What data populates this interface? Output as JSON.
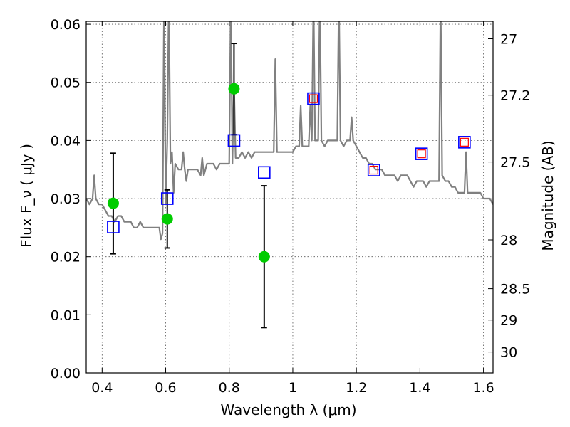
{
  "chart_data": {
    "type": "scatter",
    "xlabel": "Wavelength  λ (μm)",
    "ylabel": "Flux  F_ν  ( μJy )",
    "ylabel_right": "Magnitude (AB)",
    "xlim": [
      0.35,
      1.63
    ],
    "ylim": [
      0.0,
      0.0605
    ],
    "grid": true,
    "x_ticks": [
      0.4,
      0.6,
      0.8,
      1.0,
      1.2,
      1.4,
      1.6
    ],
    "x_tick_labels": [
      "0.4",
      "0.6",
      "0.8",
      "1",
      "1.2",
      "1.4",
      "1.6"
    ],
    "y_ticks": [
      0.0,
      0.01,
      0.02,
      0.03,
      0.04,
      0.05,
      0.06
    ],
    "y_tick_labels": [
      "0.00",
      "0.01",
      "0.02",
      "0.03",
      "0.04",
      "0.05",
      "0.06"
    ],
    "right_ticks": [
      {
        "label": "27",
        "flux": 0.0575
      },
      {
        "label": "27.2",
        "flux": 0.0478
      },
      {
        "label": "27.5",
        "flux": 0.0363
      },
      {
        "label": "28",
        "flux": 0.0229
      },
      {
        "label": "28.5",
        "flux": 0.0145
      },
      {
        "label": "29",
        "flux": 0.0091
      },
      {
        "label": "30",
        "flux": 0.0036
      }
    ],
    "series": [
      {
        "kind": "line",
        "color": "#808080",
        "x": [
          0.35,
          0.36,
          0.37,
          0.375,
          0.38,
          0.39,
          0.4,
          0.41,
          0.42,
          0.43,
          0.44,
          0.45,
          0.46,
          0.47,
          0.48,
          0.49,
          0.5,
          0.51,
          0.52,
          0.53,
          0.54,
          0.55,
          0.56,
          0.57,
          0.58,
          0.585,
          0.59,
          0.595,
          0.6,
          0.605,
          0.61,
          0.615,
          0.62,
          0.625,
          0.63,
          0.64,
          0.65,
          0.655,
          0.66,
          0.665,
          0.67,
          0.68,
          0.69,
          0.7,
          0.71,
          0.715,
          0.72,
          0.725,
          0.73,
          0.74,
          0.75,
          0.76,
          0.77,
          0.78,
          0.79,
          0.8,
          0.805,
          0.81,
          0.815,
          0.82,
          0.83,
          0.84,
          0.85,
          0.86,
          0.87,
          0.88,
          0.89,
          0.9,
          0.91,
          0.92,
          0.93,
          0.94,
          0.945,
          0.95,
          0.96,
          0.97,
          0.98,
          0.99,
          1.0,
          1.01,
          1.02,
          1.025,
          1.03,
          1.04,
          1.05,
          1.055,
          1.06,
          1.065,
          1.07,
          1.08,
          1.085,
          1.09,
          1.1,
          1.11,
          1.12,
          1.13,
          1.14,
          1.145,
          1.15,
          1.16,
          1.17,
          1.18,
          1.185,
          1.19,
          1.2,
          1.21,
          1.22,
          1.23,
          1.24,
          1.25,
          1.26,
          1.27,
          1.28,
          1.29,
          1.3,
          1.31,
          1.32,
          1.33,
          1.34,
          1.35,
          1.36,
          1.37,
          1.38,
          1.39,
          1.4,
          1.41,
          1.42,
          1.43,
          1.44,
          1.45,
          1.46,
          1.465,
          1.47,
          1.48,
          1.49,
          1.5,
          1.51,
          1.52,
          1.53,
          1.54,
          1.545,
          1.55,
          1.56,
          1.57,
          1.58,
          1.59,
          1.6,
          1.61,
          1.62,
          1.63
        ],
        "y": [
          0.03,
          0.029,
          0.03,
          0.034,
          0.03,
          0.029,
          0.029,
          0.028,
          0.027,
          0.027,
          0.026,
          0.027,
          0.027,
          0.026,
          0.026,
          0.026,
          0.025,
          0.025,
          0.026,
          0.025,
          0.025,
          0.025,
          0.025,
          0.025,
          0.025,
          0.023,
          0.024,
          0.065,
          0.029,
          0.04,
          0.065,
          0.036,
          0.038,
          0.031,
          0.036,
          0.035,
          0.035,
          0.038,
          0.035,
          0.033,
          0.035,
          0.035,
          0.035,
          0.035,
          0.034,
          0.037,
          0.034,
          0.035,
          0.036,
          0.036,
          0.036,
          0.035,
          0.036,
          0.036,
          0.036,
          0.036,
          0.065,
          0.036,
          0.05,
          0.037,
          0.037,
          0.038,
          0.037,
          0.038,
          0.037,
          0.038,
          0.038,
          0.038,
          0.038,
          0.038,
          0.038,
          0.038,
          0.054,
          0.038,
          0.038,
          0.038,
          0.038,
          0.038,
          0.038,
          0.039,
          0.039,
          0.046,
          0.039,
          0.039,
          0.039,
          0.046,
          0.04,
          0.065,
          0.04,
          0.04,
          0.065,
          0.04,
          0.039,
          0.04,
          0.04,
          0.04,
          0.04,
          0.065,
          0.04,
          0.039,
          0.04,
          0.04,
          0.044,
          0.04,
          0.039,
          0.038,
          0.037,
          0.037,
          0.036,
          0.036,
          0.035,
          0.035,
          0.035,
          0.034,
          0.034,
          0.034,
          0.034,
          0.033,
          0.034,
          0.034,
          0.034,
          0.033,
          0.032,
          0.033,
          0.033,
          0.033,
          0.032,
          0.033,
          0.033,
          0.033,
          0.033,
          0.065,
          0.034,
          0.033,
          0.033,
          0.032,
          0.032,
          0.031,
          0.031,
          0.031,
          0.038,
          0.031,
          0.031,
          0.031,
          0.031,
          0.031,
          0.03,
          0.03,
          0.03,
          0.029
        ]
      },
      {
        "kind": "points-with-errorbars",
        "color": "#00cc00",
        "x": [
          0.435,
          0.605,
          0.815,
          0.91
        ],
        "y": [
          0.0292,
          0.0265,
          0.0489,
          0.02
        ],
        "yerr_low": [
          0.0205,
          0.0215,
          0.041,
          0.0078
        ],
        "yerr_high": [
          0.0378,
          0.0315,
          0.0567,
          0.0322
        ]
      },
      {
        "kind": "open-squares",
        "color": "#0000ff",
        "x": [
          0.435,
          0.605,
          0.815,
          0.91,
          1.065,
          1.255,
          1.405,
          1.54
        ],
        "y": [
          0.0251,
          0.03,
          0.04,
          0.0345,
          0.0472,
          0.0349,
          0.0377,
          0.0397
        ]
      },
      {
        "kind": "open-squares-small",
        "color": "#ff0000",
        "x": [
          1.065,
          1.255,
          1.405,
          1.54
        ],
        "y": [
          0.0472,
          0.0349,
          0.0377,
          0.0397
        ]
      }
    ]
  }
}
